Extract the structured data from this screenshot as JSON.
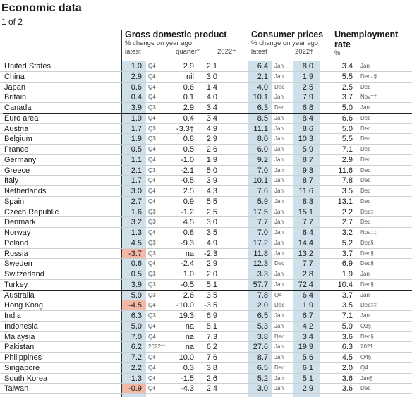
{
  "title": "Economic data",
  "subtitle": "1 of 2",
  "header": {
    "gdp": {
      "title": "Gross domestic product",
      "sub": "% change on year ago:",
      "latest": "latest",
      "quarter": "quarter*",
      "y2022": "2022†"
    },
    "cpi": {
      "title": "Consumer prices",
      "sub": "% change on year ago",
      "latest": "latest",
      "y2022": "2022†"
    },
    "unemp": {
      "title": "Unemployment",
      "title2": "rate",
      "sub": "%"
    }
  },
  "rows": [
    {
      "country": "United States",
      "gdp": "1.0",
      "gdp_q": "Q4",
      "quarter": "2.9",
      "gdp_y": "2.1",
      "cpi": "6.4",
      "cpi_m": "Jan",
      "cpi_y": "8.0",
      "un": "3.4",
      "un_m": "Jan"
    },
    {
      "country": "China",
      "gdp": "2.9",
      "gdp_q": "Q4",
      "quarter": "nil",
      "gdp_y": "3.0",
      "cpi": "2.1",
      "cpi_m": "Jan",
      "cpi_y": "1.9",
      "un": "5.5",
      "un_m": "Dec‡§"
    },
    {
      "country": "Japan",
      "gdp": "0.6",
      "gdp_q": "Q4",
      "quarter": "0.6",
      "gdp_y": "1.4",
      "cpi": "4.0",
      "cpi_m": "Dec",
      "cpi_y": "2.5",
      "un": "2.5",
      "un_m": "Dec"
    },
    {
      "country": "Britain",
      "gdp": "0.4",
      "gdp_q": "Q4",
      "quarter": "0.1",
      "gdp_y": "4.0",
      "cpi": "10.1",
      "cpi_m": "Jan",
      "cpi_y": "7.9",
      "un": "3.7",
      "un_m": "Nov††"
    },
    {
      "country": "Canada",
      "gdp": "3.9",
      "gdp_q": "Q3",
      "quarter": "2.9",
      "gdp_y": "3.4",
      "cpi": "6.3",
      "cpi_m": "Dec",
      "cpi_y": "6.8",
      "un": "5.0",
      "un_m": "Jan"
    },
    {
      "country": "Euro area",
      "gdp": "1.9",
      "gdp_q": "Q4",
      "quarter": "0.4",
      "gdp_y": "3.4",
      "cpi": "8.5",
      "cpi_m": "Jan",
      "cpi_y": "8.4",
      "un": "6.6",
      "un_m": "Dec"
    },
    {
      "country": "Austria",
      "gdp": "1.7",
      "gdp_q": "Q3",
      "quarter": "-3.3‡",
      "gdp_y": "4.9",
      "cpi": "11.1",
      "cpi_m": "Jan",
      "cpi_y": "8.6",
      "un": "5.0",
      "un_m": "Dec"
    },
    {
      "country": "Belgium",
      "gdp": "1.9",
      "gdp_q": "Q3",
      "quarter": "0.8",
      "gdp_y": "2.9",
      "cpi": "8.0",
      "cpi_m": "Jan",
      "cpi_y": "10.3",
      "un": "5.5",
      "un_m": "Dec"
    },
    {
      "country": "France",
      "gdp": "0.5",
      "gdp_q": "Q4",
      "quarter": "0.5",
      "gdp_y": "2.6",
      "cpi": "6.0",
      "cpi_m": "Jan",
      "cpi_y": "5.9",
      "un": "7.1",
      "un_m": "Dec"
    },
    {
      "country": "Germany",
      "gdp": "1.1",
      "gdp_q": "Q4",
      "quarter": "-1.0",
      "gdp_y": "1.9",
      "cpi": "9.2",
      "cpi_m": "Jan",
      "cpi_y": "8.7",
      "un": "2.9",
      "un_m": "Dec"
    },
    {
      "country": "Greece",
      "gdp": "2.1",
      "gdp_q": "Q3",
      "quarter": "-2.1",
      "gdp_y": "5.0",
      "cpi": "7.0",
      "cpi_m": "Jan",
      "cpi_y": "9.3",
      "un": "11.6",
      "un_m": "Dec"
    },
    {
      "country": "Italy",
      "gdp": "1.7",
      "gdp_q": "Q4",
      "quarter": "-0.5",
      "gdp_y": "3.9",
      "cpi": "10.1",
      "cpi_m": "Jan",
      "cpi_y": "8.7",
      "un": "7.8",
      "un_m": "Dec"
    },
    {
      "country": "Netherlands",
      "gdp": "3.0",
      "gdp_q": "Q4",
      "quarter": "2.5",
      "gdp_y": "4.3",
      "cpi": "7.6",
      "cpi_m": "Jan",
      "cpi_y": "11.6",
      "un": "3.5",
      "un_m": "Dec"
    },
    {
      "country": "Spain",
      "gdp": "2.7",
      "gdp_q": "Q4",
      "quarter": "0.9",
      "gdp_y": "5.5",
      "cpi": "5.9",
      "cpi_m": "Jan",
      "cpi_y": "8.3",
      "un": "13.1",
      "un_m": "Dec"
    },
    {
      "country": "Czech Republic",
      "gdp": "1.6",
      "gdp_q": "Q3",
      "quarter": "-1.2",
      "gdp_y": "2.5",
      "cpi": "17.5",
      "cpi_m": "Jan",
      "cpi_y": "15.1",
      "un": "2.2",
      "un_m": "Dec‡"
    },
    {
      "country": "Denmark",
      "gdp": "3.2",
      "gdp_q": "Q3",
      "quarter": "4.5",
      "gdp_y": "3.0",
      "cpi": "7.7",
      "cpi_m": "Jan",
      "cpi_y": "7.7",
      "un": "2.7",
      "un_m": "Dec"
    },
    {
      "country": "Norway",
      "gdp": "1.3",
      "gdp_q": "Q4",
      "quarter": "0.8",
      "gdp_y": "3.5",
      "cpi": "7.0",
      "cpi_m": "Jan",
      "cpi_y": "6.4",
      "un": "3.2",
      "un_m": "Nov‡‡"
    },
    {
      "country": "Poland",
      "gdp": "4.5",
      "gdp_q": "Q3",
      "quarter": "-9.3",
      "gdp_y": "4.9",
      "cpi": "17.2",
      "cpi_m": "Jan",
      "cpi_y": "14.4",
      "un": "5.2",
      "un_m": "Dec§"
    },
    {
      "country": "Russia",
      "gdp": "-3.7",
      "gdp_q": "Q3",
      "quarter": "na",
      "gdp_y": "-2.3",
      "cpi": "11.8",
      "cpi_m": "Jan",
      "cpi_y": "13.2",
      "un": "3.7",
      "un_m": "Dec§"
    },
    {
      "country": "Sweden",
      "gdp": "0.6",
      "gdp_q": "Q4",
      "quarter": "-2.4",
      "gdp_y": "2.9",
      "cpi": "12.3",
      "cpi_m": "Dec",
      "cpi_y": "7.7",
      "un": "6.9",
      "un_m": "Dec§"
    },
    {
      "country": "Switzerland",
      "gdp": "0.5",
      "gdp_q": "Q3",
      "quarter": "1.0",
      "gdp_y": "2.0",
      "cpi": "3.3",
      "cpi_m": "Jan",
      "cpi_y": "2.8",
      "un": "1.9",
      "un_m": "Jan"
    },
    {
      "country": "Turkey",
      "gdp": "3.9",
      "gdp_q": "Q3",
      "quarter": "-0.5",
      "gdp_y": "5.1",
      "cpi": "57.7",
      "cpi_m": "Jan",
      "cpi_y": "72.4",
      "un": "10.4",
      "un_m": "Dec§"
    },
    {
      "country": "Australia",
      "gdp": "5.9",
      "gdp_q": "Q3",
      "quarter": "2.6",
      "gdp_y": "3.5",
      "cpi": "7.8",
      "cpi_m": "Q4",
      "cpi_y": "6.4",
      "un": "3.7",
      "un_m": "Jan"
    },
    {
      "country": "Hong Kong",
      "gdp": "-4.5",
      "gdp_q": "Q4",
      "quarter": "-10.0",
      "gdp_y": "-3.5",
      "cpi": "2.0",
      "cpi_m": "Dec",
      "cpi_y": "1.9",
      "un": "3.5",
      "un_m": "Dec‡‡"
    },
    {
      "country": "India",
      "gdp": "6.3",
      "gdp_q": "Q3",
      "quarter": "19.3",
      "gdp_y": "6.9",
      "cpi": "6.5",
      "cpi_m": "Jan",
      "cpi_y": "6.7",
      "un": "7.1",
      "un_m": "Jan"
    },
    {
      "country": "Indonesia",
      "gdp": "5.0",
      "gdp_q": "Q4",
      "quarter": "na",
      "gdp_y": "5.1",
      "cpi": "5.3",
      "cpi_m": "Jan",
      "cpi_y": "4.2",
      "un": "5.9",
      "un_m": "Q3§"
    },
    {
      "country": "Malaysia",
      "gdp": "7.0",
      "gdp_q": "Q4",
      "quarter": "na",
      "gdp_y": "7.3",
      "cpi": "3.8",
      "cpi_m": "Dec",
      "cpi_y": "3.4",
      "un": "3.6",
      "un_m": "Dec§"
    },
    {
      "country": "Pakistan",
      "gdp": "6.2",
      "gdp_q": "2022**",
      "quarter": "na",
      "gdp_y": "6.2",
      "cpi": "27.6",
      "cpi_m": "Jan",
      "cpi_y": "19.9",
      "un": "6.3",
      "un_m": "2021"
    },
    {
      "country": "Philippines",
      "gdp": "7.2",
      "gdp_q": "Q4",
      "quarter": "10.0",
      "gdp_y": "7.6",
      "cpi": "8.7",
      "cpi_m": "Jan",
      "cpi_y": "5.6",
      "un": "4.5",
      "un_m": "Q4§"
    },
    {
      "country": "Singapore",
      "gdp": "2.2",
      "gdp_q": "Q4",
      "quarter": "0.3",
      "gdp_y": "3.8",
      "cpi": "6.5",
      "cpi_m": "Dec",
      "cpi_y": "6.1",
      "un": "2.0",
      "un_m": "Q4"
    },
    {
      "country": "South Korea",
      "gdp": "1.3",
      "gdp_q": "Q4",
      "quarter": "-1.5",
      "gdp_y": "2.6",
      "cpi": "5.2",
      "cpi_m": "Jan",
      "cpi_y": "5.1",
      "un": "3.6",
      "un_m": "Jan§"
    },
    {
      "country": "Taiwan",
      "gdp": "-0.9",
      "gdp_q": "Q4",
      "quarter": "-4.3",
      "gdp_y": "2.4",
      "cpi": "3.0",
      "cpi_m": "Jan",
      "cpi_y": "2.9",
      "un": "3.6",
      "un_m": "Dec"
    }
  ],
  "colors": {
    "band": "#cfe0ea",
    "negative": "#f4b9a6"
  }
}
